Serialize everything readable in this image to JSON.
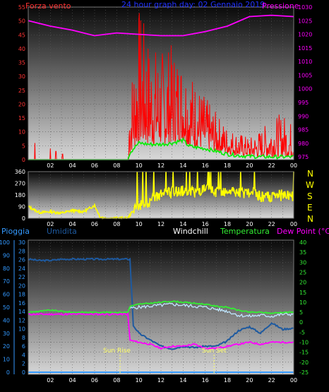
{
  "header": {
    "wind_title": "Forza vento",
    "date_title": "24 hour graph day: 02 Gennaio 2019",
    "pressure_title": "Pressione"
  },
  "directions": [
    "N",
    "W",
    "S",
    "E",
    "N"
  ],
  "legend2": {
    "rain": "Pioggia",
    "humidity": "Umidita",
    "windchill": "Windchill",
    "temperature": "Temperatura",
    "dewpoint": "Dew Point (°C)"
  },
  "annotations": {
    "sunrise": "Sun Rise",
    "sunset": "Sun Set"
  },
  "colors": {
    "wind": "#ff0000",
    "gust_avg": "#00ee00",
    "pressure": "#ff00ff",
    "direction": "#ffff00",
    "humidity": "#1e5aa0",
    "temperature": "#33ee33",
    "windchill": "#bfe6ff",
    "dewpoint": "#ff00ff",
    "rain": "#3399ff",
    "left_axis": "#ff3333",
    "right_axis": "#ff00ff",
    "blue_axis": "#3399ff",
    "temp_axis": "#33ee33"
  },
  "chart_data": [
    {
      "type": "line",
      "name": "wind",
      "x_ticks": [
        "02",
        "04",
        "06",
        "08",
        "10",
        "12",
        "14",
        "16",
        "18",
        "20",
        "22",
        "00"
      ],
      "y_left_ticks": [
        0,
        5,
        10,
        15,
        20,
        25,
        30,
        35,
        40,
        45,
        50,
        55
      ],
      "y_right_ticks": [
        975,
        980,
        985,
        990,
        995,
        1000,
        1005,
        1010,
        1015,
        1020,
        1025,
        1030
      ],
      "ylim_left": [
        0,
        55
      ],
      "ylim_right": [
        974,
        1030
      ],
      "pressure": {
        "x": [
          0,
          2,
          4,
          6,
          8,
          10,
          12,
          14,
          16,
          18,
          20,
          22,
          24
        ],
        "values": [
          1025,
          1023,
          1021.5,
          1019.5,
          1020.5,
          1020,
          1019.5,
          1019.5,
          1021,
          1023,
          1026.5,
          1027,
          1026.5
        ]
      },
      "wind_avg": {
        "x": [
          0,
          9,
          9.3,
          10,
          11,
          12,
          13,
          14,
          14.5,
          15,
          16,
          17,
          18,
          19,
          20,
          21,
          22,
          23,
          24
        ],
        "values": [
          0,
          0,
          3,
          6,
          5.5,
          5.5,
          6,
          7,
          5,
          4.5,
          4,
          3,
          2,
          1.5,
          1.2,
          1,
          1,
          1,
          1
        ]
      },
      "wind_gust_peak": {
        "x": [
          9.2,
          10,
          11,
          12,
          13,
          14,
          15,
          16,
          17,
          18,
          19,
          20,
          21,
          22,
          23,
          24
        ],
        "values": [
          27,
          56,
          43,
          40,
          42,
          38,
          30,
          23,
          17,
          12,
          10,
          8,
          11,
          15,
          17,
          13
        ]
      }
    },
    {
      "type": "line",
      "name": "wind_direction",
      "y_ticks": [
        0,
        90,
        180,
        270,
        360
      ],
      "ylim": [
        0,
        360
      ],
      "x": [
        0,
        1,
        2,
        3,
        4,
        5,
        6,
        6.5,
        7,
        8,
        9,
        9.5,
        10,
        11,
        12,
        13,
        14,
        14.5,
        15,
        16,
        17,
        18,
        19,
        20,
        21,
        22,
        23,
        24
      ],
      "values": [
        90,
        45,
        50,
        40,
        60,
        50,
        100,
        10,
        0,
        0,
        0,
        60,
        100,
        130,
        180,
        200,
        210,
        220,
        200,
        220,
        200,
        210,
        190,
        200,
        170,
        160,
        180,
        170
      ]
    },
    {
      "type": "line",
      "name": "temperature_humidity",
      "y_rain_ticks": [
        0,
        10,
        20,
        30,
        40,
        50,
        60,
        70,
        80,
        90,
        100
      ],
      "y_humidity_ticks": [
        0,
        2,
        4,
        6,
        8,
        10,
        12,
        14,
        16,
        18,
        20,
        22,
        24,
        26,
        28,
        30
      ],
      "y_temp_ticks": [
        -25,
        -20,
        -15,
        -10,
        -5,
        0,
        5,
        10,
        15,
        20,
        25,
        30,
        35,
        40
      ],
      "temp_ylim": [
        -25,
        40
      ],
      "humidity": {
        "x": [
          0,
          1,
          2,
          3,
          4,
          5,
          6,
          7,
          8,
          9,
          9.2,
          9.5,
          10,
          11,
          12,
          13,
          14,
          15,
          16,
          17,
          18,
          19,
          20,
          21,
          22,
          23,
          24
        ],
        "values": [
          87,
          86,
          86,
          87,
          87,
          87,
          87,
          87,
          87,
          87,
          87,
          36,
          30,
          25,
          20,
          18,
          20,
          19,
          20,
          20,
          24,
          32,
          35,
          30,
          38,
          33,
          34
        ]
      },
      "temperature": {
        "x": [
          0,
          1,
          2,
          3,
          4,
          5,
          6,
          7,
          8,
          9,
          9.2,
          10,
          11,
          12,
          13,
          14,
          15,
          16,
          17,
          18,
          19,
          20,
          21,
          22,
          23,
          24
        ],
        "values": [
          5,
          5.5,
          6,
          5.5,
          5,
          5,
          5,
          5,
          5,
          5,
          8,
          9,
          9.5,
          10,
          10.5,
          10,
          9.5,
          9,
          8,
          7.5,
          6,
          5,
          5,
          4.5,
          5,
          5
        ]
      },
      "windchill": {
        "x": [
          9.2,
          10,
          11,
          12,
          13,
          14,
          15,
          16,
          17,
          18,
          19,
          20,
          21,
          22,
          23,
          24
        ],
        "values": [
          7,
          7.5,
          8,
          8.5,
          9,
          8.5,
          8,
          7.5,
          6.5,
          5.5,
          3.5,
          3,
          3.5,
          3,
          4,
          4
        ]
      },
      "dewpoint": {
        "x": [
          0,
          2,
          4,
          6,
          8,
          9,
          9.2,
          10,
          11,
          12,
          13,
          14,
          15,
          16,
          17,
          18,
          19,
          20,
          21,
          22,
          23,
          24
        ],
        "values": [
          4,
          4,
          4,
          4,
          4,
          4,
          -9,
          -10,
          -11,
          -13,
          -12,
          -12,
          -11,
          -13,
          -13,
          -12,
          -11,
          -10,
          -11,
          -10,
          -10,
          -10
        ]
      },
      "rain": {
        "x": [
          0,
          24
        ],
        "values": [
          0,
          0
        ]
      },
      "sunrise_x": 8.3,
      "sunset_x": 16.8
    }
  ]
}
